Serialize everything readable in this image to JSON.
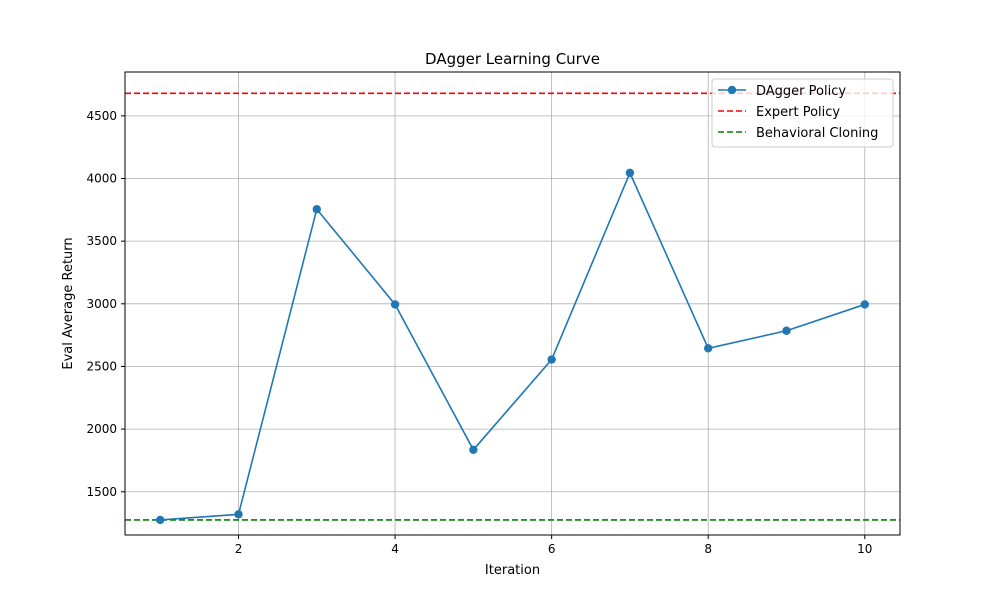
{
  "chart_data": {
    "type": "line",
    "title": "DAgger Learning Curve",
    "xlabel": "Iteration",
    "ylabel": "Eval Average Return",
    "xlim": [
      0.55,
      10.45
    ],
    "ylim": [
      1155,
      4850
    ],
    "xticks": [
      2,
      4,
      6,
      8,
      10
    ],
    "yticks": [
      1500,
      2000,
      2500,
      3000,
      3500,
      4000,
      4500
    ],
    "grid": true,
    "legend_position": "top-right",
    "series": [
      {
        "name": "DAgger Policy",
        "style": "solid-with-markers",
        "color": "#1f77b4",
        "x": [
          1,
          2,
          3,
          4,
          5,
          6,
          7,
          8,
          9,
          10
        ],
        "y": [
          1275,
          1320,
          3755,
          2995,
          1835,
          2555,
          4045,
          2645,
          2785,
          2995
        ]
      },
      {
        "name": "Expert Policy",
        "style": "dashed-horizontal",
        "color": "#ff0000",
        "y": 4680
      },
      {
        "name": "Behavioral Cloning",
        "style": "dashed-horizontal",
        "color": "#008000",
        "y": 1275
      }
    ]
  }
}
